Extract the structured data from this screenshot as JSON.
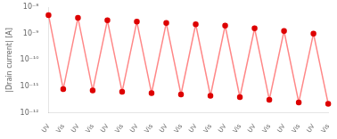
{
  "chart_data": {
    "type": "line",
    "y_label": "|Drain current| [A]",
    "categories": [
      "UV",
      "Vis",
      "UV",
      "Vis",
      "UV",
      "Vis",
      "UV",
      "Vis",
      "UV",
      "Vis",
      "UV",
      "Vis",
      "UV",
      "Vis",
      "UV",
      "Vis",
      "UV",
      "Vis",
      "UV",
      "Vis"
    ],
    "values": [
      5.011872336272722e-09,
      7.943282347242815e-12,
      3.981071705534972e-09,
      7.079457843841379e-12,
      3.1622776601683795e-09,
      6.309573444801933e-12,
      2.818382931264454e-09,
      5.623413251903491e-12,
      2.51188643150958e-09,
      5.011872336272722e-12,
      2.2387211385683394e-09,
      4.466835921509632e-12,
      1.9952623149688795e-09,
      3.981071705534972e-12,
      1.5848931924611136e-09,
      3.1622776601683794e-12,
      1.2589254117941673e-09,
      2.51188643150958e-12,
      1e-09,
      2.2387211385683395e-12
    ],
    "color": "#ff8888",
    "colors": [
      "#dd0000",
      "#dd0000",
      "#dd0000",
      "#dd0000",
      "#dd0000",
      "#dd0000",
      "#dd0000",
      "#dd0000",
      "#dd0000",
      "#dd0000",
      "#dd0000",
      "#dd0000",
      "#dd0000",
      "#dd0000",
      "#dd0000",
      "#dd0000",
      "#dd0000",
      "#dd0000",
      "#dd0000",
      "#dd0000"
    ],
    "marker": "circle",
    "log": "y",
    "ylim": [
      1e-12,
      1e-08
    ],
    "yticks": [
      {
        "value": 1e-12,
        "label": "10⁻¹²"
      },
      {
        "value": 1e-11,
        "label": "10⁻¹¹"
      },
      {
        "value": 1e-10,
        "label": "10⁻¹⁰"
      },
      {
        "value": 1e-09,
        "label": "10⁻⁹"
      },
      {
        "value": 1e-08,
        "label": "10⁻⁸"
      }
    ],
    "grid": false
  }
}
